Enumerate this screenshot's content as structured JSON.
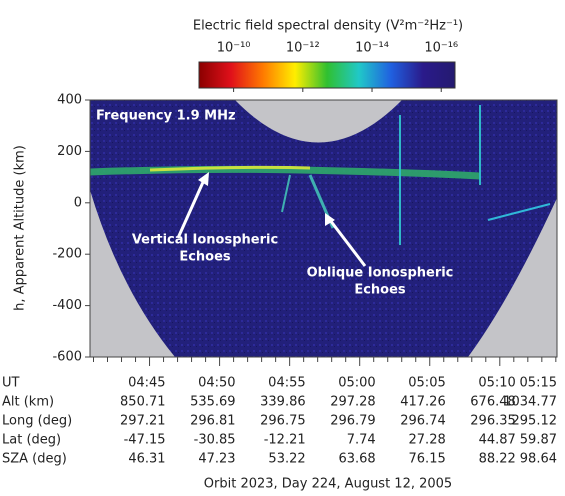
{
  "chart_data": {
    "type": "image",
    "title": "Frequency 1.9 MHz",
    "colorbar": {
      "label": "Electric field spectral density (V²m⁻²Hz⁻¹)",
      "log": true,
      "clim": [
        1e-09,
        4e-17
      ],
      "ticks": [
        {
          "value": 1e-10,
          "label": "10⁻¹⁰"
        },
        {
          "value": 1e-12,
          "label": "10⁻¹²"
        },
        {
          "value": 1e-14,
          "label": "10⁻¹⁴"
        },
        {
          "value": 1e-16,
          "label": "10⁻¹⁶"
        }
      ],
      "colors": [
        "#8b0000",
        "#e0101a",
        "#ff7a00",
        "#ffee00",
        "#30c030",
        "#20c8c8",
        "#2060e0",
        "#2a1a8a",
        "#241a70"
      ]
    },
    "ylabel": "h, Apparent Altitude (km)",
    "ylim": [
      -600,
      400
    ],
    "yticks": [
      -600,
      -400,
      -200,
      0,
      200,
      400
    ],
    "xlabel": "UT",
    "xlim": [
      "04:40:45",
      "05:14:05"
    ],
    "xticks": [
      "04:45",
      "04:50",
      "04:55",
      "05:00",
      "05:05",
      "05:10",
      "05:15"
    ],
    "xminorticks": [
      "04:41",
      "04:42",
      "04:43",
      "04:44",
      "04:46",
      "04:47",
      "04:48",
      "04:49",
      "04:51",
      "04:52",
      "04:53",
      "04:54",
      "04:56",
      "04:57",
      "04:58",
      "04:59",
      "05:01",
      "05:02",
      "05:03",
      "05:04",
      "05:06",
      "05:07",
      "05:08",
      "05:09",
      "05:11",
      "05:12",
      "05:13",
      "05:14"
    ],
    "annotations": [
      {
        "lines": [
          "Vertical Ionospheric",
          "Echoes"
        ]
      },
      {
        "lines": [
          "Oblique Ionospheric",
          "Echoes"
        ]
      }
    ],
    "table": {
      "rows": [
        {
          "label": "Alt (km)",
          "values": [
            850.71,
            535.69,
            339.86,
            297.28,
            417.26,
            676.48,
            1034.77
          ]
        },
        {
          "label": "Long (deg)",
          "values": [
            297.21,
            296.81,
            296.75,
            296.79,
            296.74,
            296.35,
            295.12
          ]
        },
        {
          "label": "Lat (deg)",
          "values": [
            -47.15,
            -30.85,
            -12.21,
            7.74,
            27.28,
            44.87,
            59.87
          ]
        },
        {
          "label": "SZA (deg)",
          "values": [
            46.31,
            47.23,
            53.22,
            63.68,
            76.15,
            88.22,
            98.64
          ]
        }
      ]
    },
    "footer": "Orbit 2023, Day 224, August 12, 2005"
  }
}
